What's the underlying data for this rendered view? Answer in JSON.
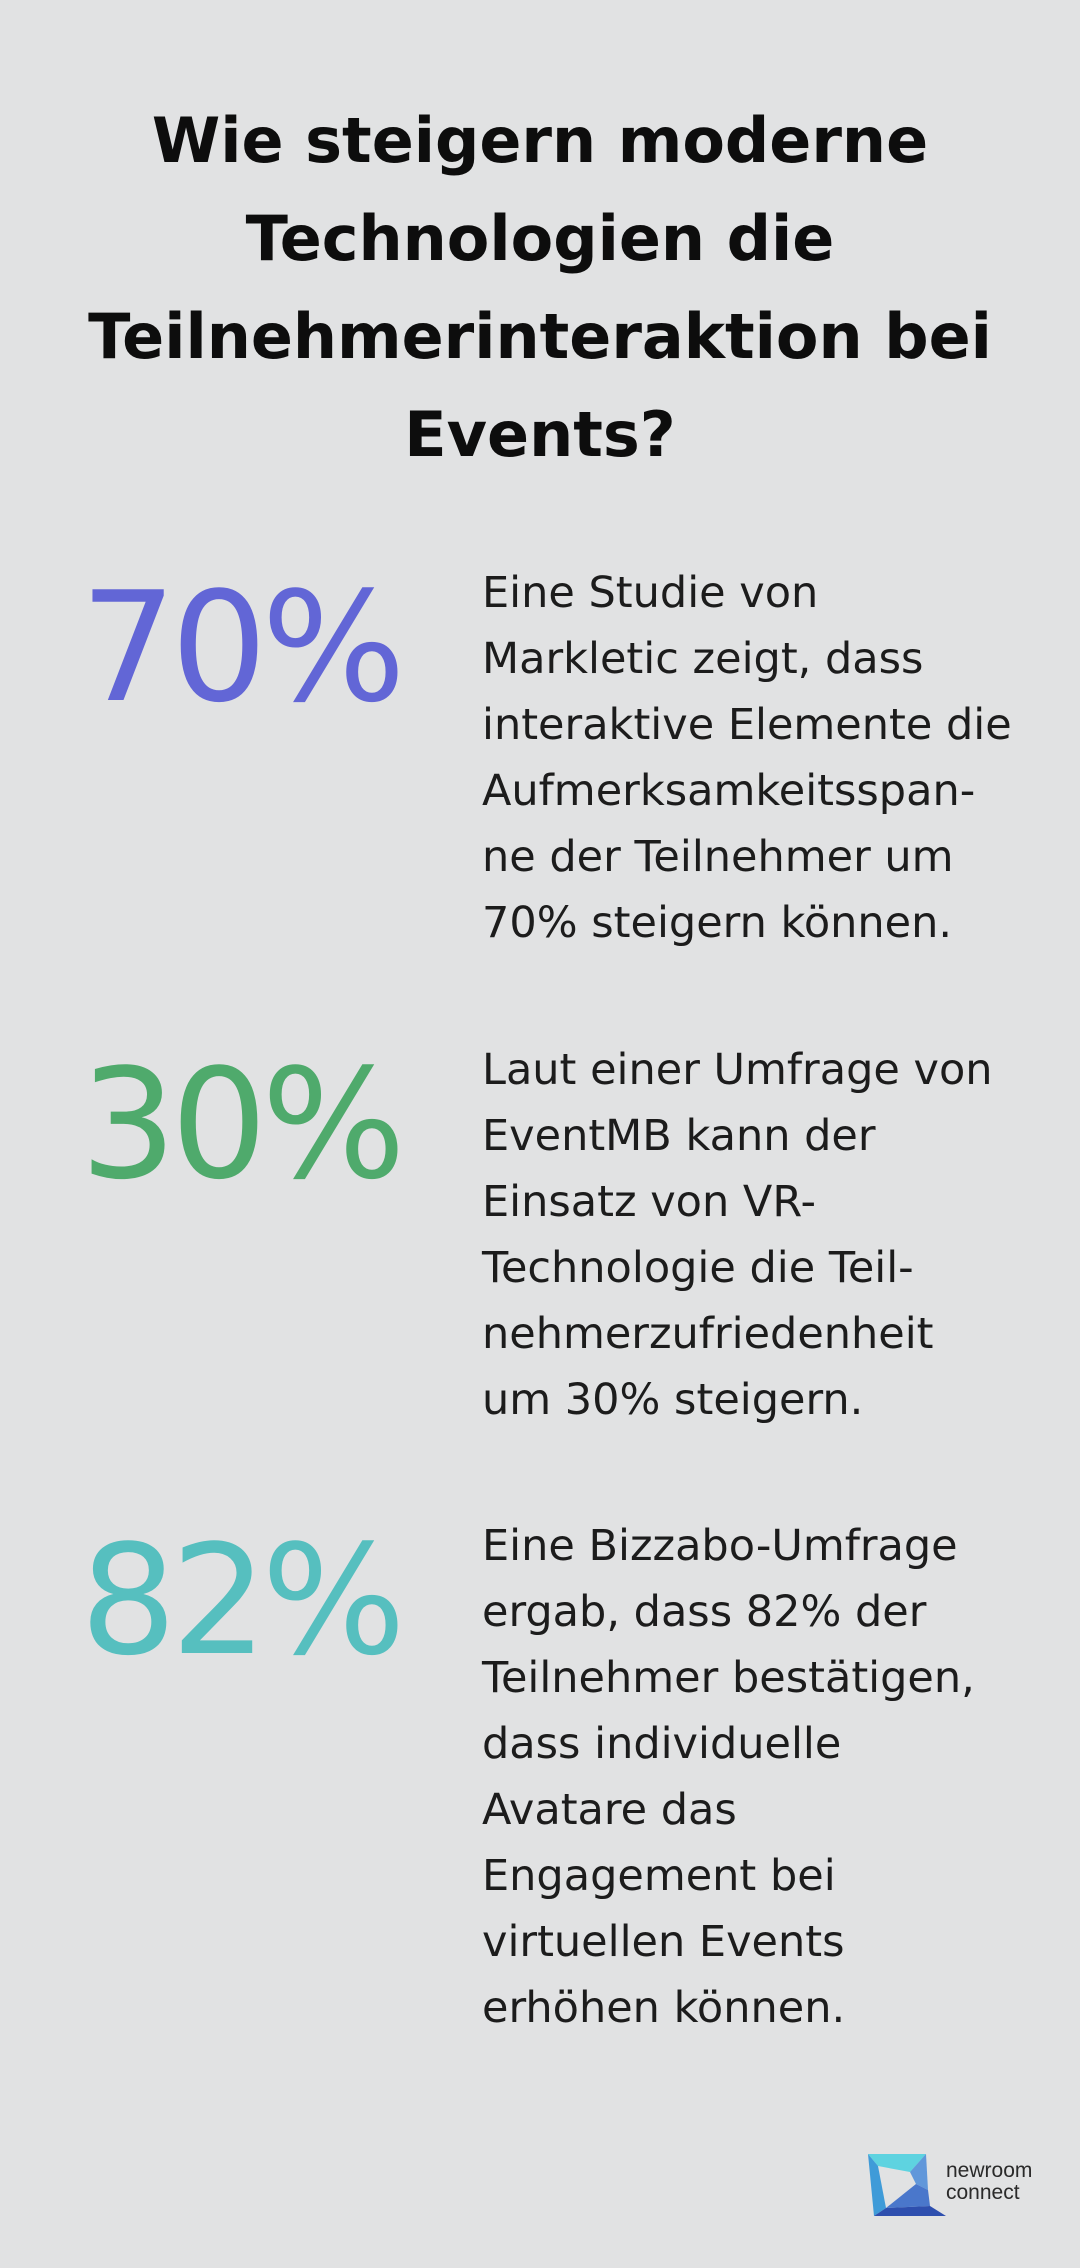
{
  "title": "Wie steigern moderne Technologien die Teilnehmerinteraktion bei Events?",
  "stats": [
    {
      "value": "70%",
      "color": "#6266d6",
      "description": "Eine Studie von\nMarkletic zeigt, dass\ninteraktive Elemente die\nAufmerksamkeitsspan-\nne der Teilnehmer um\n70% steigern können."
    },
    {
      "value": "30%",
      "color": "#4faa6c",
      "description": "Laut einer Umfrage von\nEventMB kann der\nEinsatz von VR-\nTechnologie die Teil-\nnehmerzufriedenheit\num 30% steigern."
    },
    {
      "value": "82%",
      "color": "#56bfbf",
      "description": "Eine Bizzabo-Umfrage\nergab, dass 82% der\nTeilnehmer bestätigen,\ndass individuelle\nAvatare das\nEngagement bei\nvirtuellen Events\nerhöhen können."
    }
  ],
  "logo": {
    "line1": "newroom",
    "line2": "connect",
    "colors": [
      "#5ed3e0",
      "#3d7fd4",
      "#2e4fae"
    ]
  }
}
